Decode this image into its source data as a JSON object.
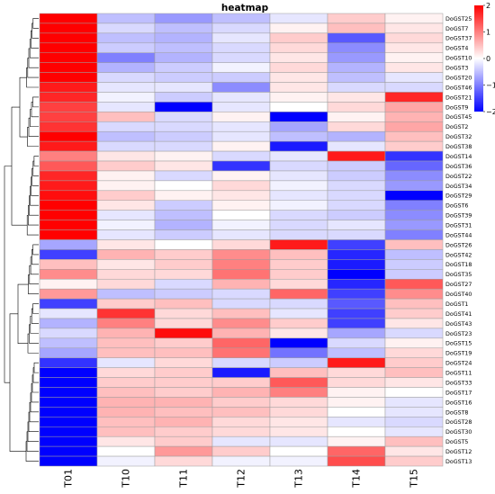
{
  "chart_data": {
    "type": "heatmap",
    "title": "heatmap",
    "columns": [
      "T01",
      "T10",
      "T11",
      "T12",
      "T13",
      "T14",
      "T15"
    ],
    "rows": [
      "DoGST25",
      "DoGST7",
      "DoGST37",
      "DoGST4",
      "DoGST10",
      "DoGST3",
      "DoGST20",
      "DoGST46",
      "DoGST21",
      "DoGST9",
      "DoGST45",
      "DoGST2",
      "DoGST32",
      "DoGST38",
      "DoGST14",
      "DoGST36",
      "DoGST22",
      "DoGST34",
      "DoGST29",
      "DoGST6",
      "DoGST39",
      "DoGST31",
      "DoGST44",
      "DoGST26",
      "DoGST42",
      "DoGST18",
      "DoGST35",
      "DoGST27",
      "DoGST40",
      "DoGST1",
      "DoGST41",
      "DoGST43",
      "DoGST23",
      "DoGST15",
      "DoGST19",
      "DoGST24",
      "DoGST11",
      "DoGST33",
      "DoGST17",
      "DoGST16",
      "DoGST8",
      "DoGST28",
      "DoGST30",
      "DoGST5",
      "DoGST12",
      "DoGST13"
    ],
    "values": [
      [
        2.0,
        -0.5,
        -0.8,
        -0.5,
        -0.2,
        0.4,
        0.1
      ],
      [
        2.0,
        -0.3,
        -0.5,
        -0.3,
        0.1,
        0.5,
        0.2
      ],
      [
        2.0,
        -0.5,
        -0.6,
        -0.2,
        0.4,
        -1.3,
        0.3
      ],
      [
        2.0,
        -0.4,
        -0.5,
        -0.3,
        0.3,
        -0.9,
        0.2
      ],
      [
        2.0,
        -1.0,
        -0.6,
        -0.3,
        0.2,
        -0.8,
        0.1
      ],
      [
        2.0,
        -0.6,
        -0.4,
        -0.1,
        0.3,
        -0.6,
        0.2
      ],
      [
        2.0,
        -0.3,
        -0.4,
        -0.4,
        0.2,
        -0.5,
        -0.2
      ],
      [
        1.8,
        -0.2,
        -0.2,
        -0.9,
        0.2,
        -0.3,
        -0.3
      ],
      [
        1.7,
        -0.1,
        -0.4,
        -0.2,
        0.1,
        0.2,
        1.7
      ],
      [
        1.5,
        -0.2,
        -2.0,
        -0.2,
        0.0,
        0.3,
        0.7
      ],
      [
        1.5,
        0.5,
        -0.3,
        0.1,
        -2.0,
        0.1,
        0.6
      ],
      [
        1.6,
        -0.3,
        -0.3,
        -0.2,
        -0.7,
        0.3,
        0.7
      ],
      [
        2.0,
        -0.5,
        -0.4,
        -0.2,
        -0.5,
        -0.6,
        0.5
      ],
      [
        1.8,
        -0.3,
        -0.3,
        0.1,
        -1.8,
        -0.2,
        0.4
      ],
      [
        1.0,
        0.2,
        0.1,
        -0.3,
        -0.2,
        1.8,
        -1.6
      ],
      [
        1.3,
        0.4,
        0.2,
        -1.6,
        -0.3,
        -0.4,
        -1.2
      ],
      [
        1.7,
        0.1,
        -0.3,
        0.1,
        -0.2,
        -0.4,
        -0.9
      ],
      [
        1.8,
        0.1,
        0.0,
        0.3,
        -0.1,
        -0.3,
        -0.8
      ],
      [
        1.9,
        0.4,
        0.1,
        0.2,
        -0.2,
        -0.3,
        -2.0
      ],
      [
        2.0,
        0.2,
        -0.4,
        0.1,
        -0.1,
        -0.3,
        -1.0
      ],
      [
        2.0,
        -0.2,
        -0.5,
        0.0,
        -0.3,
        -0.4,
        -0.9
      ],
      [
        2.0,
        -0.1,
        -0.6,
        -0.1,
        -0.3,
        -0.2,
        -0.8
      ],
      [
        2.0,
        -0.2,
        -0.4,
        -0.2,
        -0.3,
        -0.3,
        -1.0
      ],
      [
        -0.7,
        0.2,
        0.0,
        0.3,
        1.8,
        -1.5,
        0.5
      ],
      [
        -1.5,
        0.6,
        0.4,
        0.9,
        0.5,
        -1.7,
        -0.5
      ],
      [
        0.5,
        0.2,
        0.4,
        1.0,
        0.4,
        -1.8,
        -0.4
      ],
      [
        0.9,
        0.3,
        0.3,
        1.1,
        0.4,
        -2.0,
        -0.4
      ],
      [
        0.1,
        0.3,
        -0.3,
        0.6,
        0.3,
        -1.7,
        1.3
      ],
      [
        0.8,
        -0.5,
        -0.4,
        -0.3,
        1.2,
        -1.5,
        0.9
      ],
      [
        -1.5,
        0.4,
        0.5,
        -0.3,
        -0.3,
        -1.3,
        0.5
      ],
      [
        -0.2,
        1.6,
        0.3,
        0.5,
        -0.2,
        -1.5,
        0.4
      ],
      [
        -0.6,
        1.0,
        0.3,
        0.9,
        0.4,
        -1.5,
        0.2
      ],
      [
        -0.3,
        0.6,
        1.9,
        0.6,
        0.2,
        -0.7,
        -0.3
      ],
      [
        -0.5,
        0.5,
        0.4,
        1.2,
        -2.0,
        -0.3,
        0.1
      ],
      [
        -0.7,
        0.5,
        0.5,
        1.1,
        -1.1,
        -0.5,
        0.3
      ],
      [
        -1.6,
        -0.2,
        0.3,
        -0.3,
        -0.4,
        1.8,
        0.4
      ],
      [
        -2.0,
        0.3,
        0.4,
        -1.8,
        0.5,
        0.3,
        0.5
      ],
      [
        -2.0,
        0.4,
        0.4,
        0.4,
        1.3,
        0.3,
        0.2
      ],
      [
        -2.0,
        0.5,
        0.4,
        0.6,
        1.0,
        0.1,
        0.0
      ],
      [
        -2.0,
        0.6,
        0.6,
        0.4,
        0.3,
        0.1,
        -0.2
      ],
      [
        -2.0,
        0.6,
        0.5,
        0.5,
        0.3,
        0.0,
        -0.2
      ],
      [
        -2.0,
        0.5,
        0.6,
        0.3,
        0.2,
        -0.2,
        -0.3
      ],
      [
        -2.0,
        0.5,
        0.4,
        0.3,
        0.2,
        0.0,
        -0.2
      ],
      [
        -2.0,
        0.2,
        0.4,
        -0.2,
        -0.2,
        0.1,
        0.5
      ],
      [
        -2.0,
        0.0,
        0.8,
        0.4,
        0.0,
        1.2,
        0.2
      ],
      [
        -2.0,
        -0.1,
        0.3,
        -0.1,
        -0.1,
        1.4,
        0.4
      ]
    ],
    "legend": {
      "ticks": [
        2,
        1,
        0,
        -1,
        -2
      ],
      "range": [
        -2,
        2
      ],
      "placement": "top-right"
    },
    "colors": {
      "low": "#0000ff",
      "mid": "#ffffff",
      "high": "#ff0000",
      "border": "#9e9e9e"
    }
  }
}
